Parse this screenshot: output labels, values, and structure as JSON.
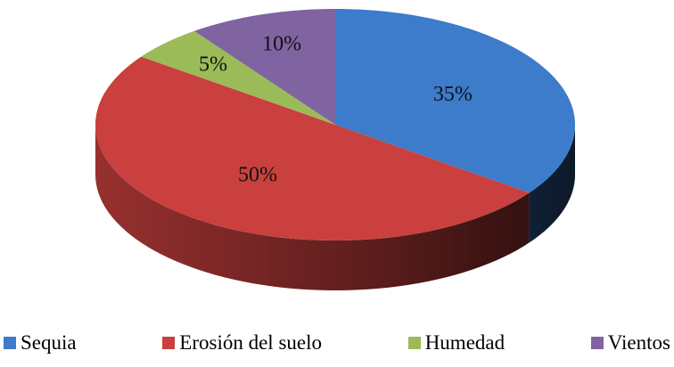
{
  "chart_data": {
    "type": "pie",
    "three_d": true,
    "categories": [
      "Sequia",
      "Erosión del suelo",
      "Humedad",
      "Vientos"
    ],
    "values": [
      35,
      50,
      5,
      10
    ],
    "value_labels": [
      "35%",
      "50%",
      "5%",
      "10%"
    ],
    "colors": [
      "#3d7bcb",
      "#c9403e",
      "#9bbb59",
      "#8064a2"
    ],
    "legend": "bottom"
  }
}
